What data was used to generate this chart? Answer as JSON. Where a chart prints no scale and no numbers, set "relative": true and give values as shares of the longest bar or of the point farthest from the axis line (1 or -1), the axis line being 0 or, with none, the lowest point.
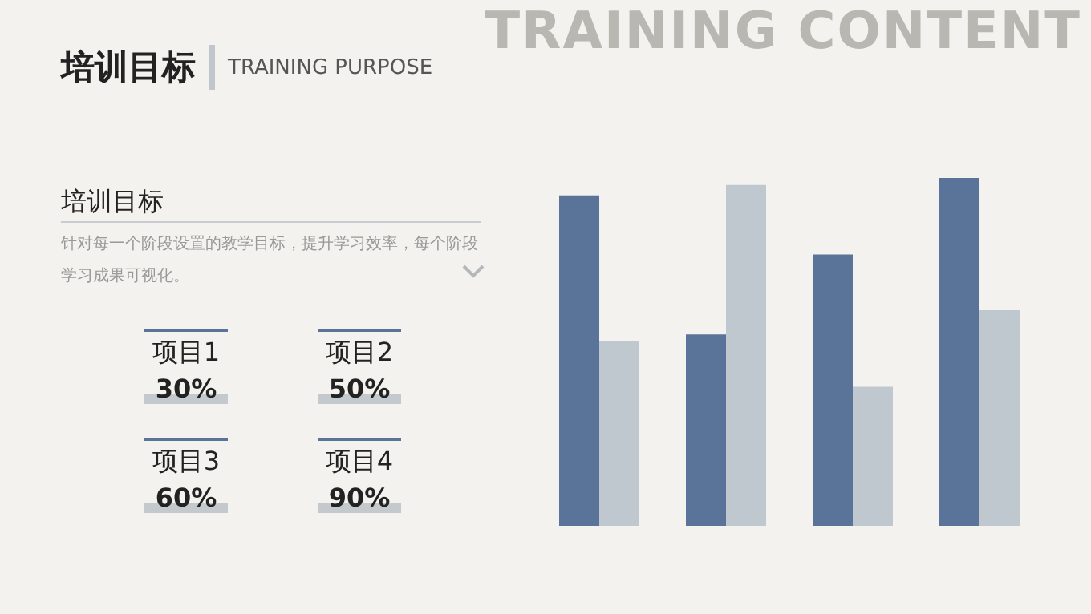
{
  "chart_data": [
    {
      "type": "other",
      "title": "培训目标",
      "subtitle": "TRAINING PURPOSE",
      "annotations": [
        "TRAINING CONTENT",
        "培训目标",
        "针对每一个阶段设置的教学目标，提升学习效率，每个阶段学习成果可视化。"
      ],
      "categories": [
        "项目1",
        "项目2",
        "项目3",
        "项目4"
      ],
      "value_labels": [
        "30%",
        "50%",
        "60%",
        "90%"
      ]
    },
    {
      "type": "bar",
      "relative": true,
      "categories": [
        null,
        null,
        null,
        null
      ],
      "series": [
        {
          "color": "#5a7499",
          "values": [
            0.95,
            0.55,
            0.78,
            1
          ]
        },
        {
          "color": "#bfc8cf",
          "values": [
            0.53,
            0.98,
            0.4,
            0.62
          ]
        }
      ]
    }
  ]
}
